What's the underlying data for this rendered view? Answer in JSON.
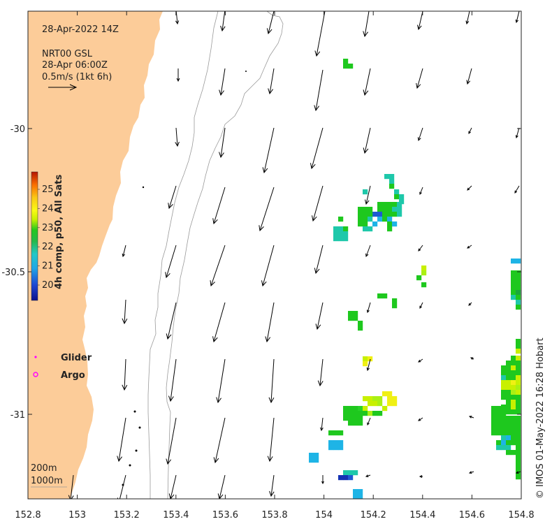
{
  "header": {
    "datetime": "28-Apr-2022 14Z",
    "product": "NRT00 GSL",
    "product_time": "28-Apr 06:00Z",
    "scale_label": "0.5m/s (1kt 6h)"
  },
  "colorbar": {
    "title": "4h comp, p50, All Sats",
    "ticks": [
      "20",
      "21",
      "22",
      "23",
      "24",
      "25"
    ]
  },
  "legend": {
    "glider": "Glider",
    "argo": "Argo",
    "glider_color": "#ff00ff",
    "argo_color": "#ff00ff"
  },
  "contours": {
    "c200": "200m",
    "c1000": "1000m"
  },
  "credit": "© IMOS 01-May-2022 16:28 Hobart",
  "axes": {
    "x_ticks": [
      "152.8",
      "153",
      "153.2",
      "153.4",
      "153.6",
      "153.8",
      "154",
      "154.2",
      "154.4",
      "154.6",
      "154.8"
    ],
    "y_ticks": [
      "-30",
      "-30.5",
      "-31"
    ]
  },
  "colors": {
    "land": "#fccc99",
    "ocean": "#ffffff"
  },
  "chart_data": {
    "type": "heatmap",
    "title": "",
    "xlabel": "",
    "ylabel": "",
    "xlim": [
      152.8,
      154.8
    ],
    "ylim": [
      -31.3,
      -29.6
    ],
    "color_scale": [
      19.6,
      25.9
    ]
  }
}
